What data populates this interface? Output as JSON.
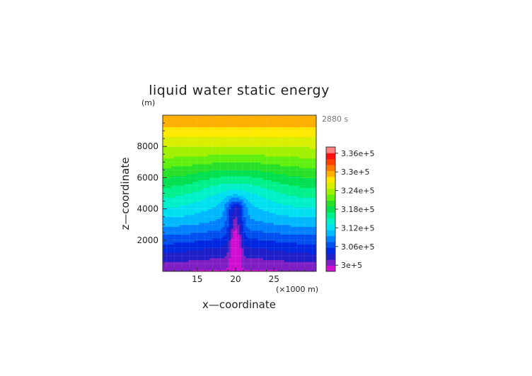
{
  "chart_data": {
    "type": "heatmap",
    "title": "liquid water static energy",
    "xlabel": "x—coordinate",
    "ylabel": "z—coordinate",
    "y_unit": "(m)",
    "x_unit": "(×1000 m)",
    "time_label": "2880 s",
    "xlim": [
      10.5,
      30.5
    ],
    "ylim": [
      0,
      10000
    ],
    "x_ticks": [
      15,
      20,
      25
    ],
    "y_ticks": [
      2000,
      4000,
      6000,
      8000
    ],
    "colorbar": {
      "range": [
        298000.0,
        338000.0
      ],
      "step": 2000,
      "tick_values": [
        300000.0,
        306000.0,
        312000.0,
        318000.0,
        324000.0,
        330000.0,
        336000.0
      ],
      "tick_labels": [
        "3e+5",
        "3.06e+5",
        "3.12e+5",
        "3.18e+5",
        "3.24e+5",
        "3.3e+5",
        "3.36e+5"
      ],
      "colors": [
        "#d10fd1",
        "#7e1fc4",
        "#1f1fc8",
        "#0028e0",
        "#0050f0",
        "#0080ff",
        "#00b8ff",
        "#00e0f0",
        "#00f0c8",
        "#00f08c",
        "#00e050",
        "#28e028",
        "#60f010",
        "#a0f000",
        "#d8f000",
        "#ffe800",
        "#ffb000",
        "#ff7800",
        "#ff4000",
        "#ff1010",
        "#ff8080"
      ]
    },
    "field_description": "Horizontally stratified energy increasing with height; a narrow low-energy plume centred at x = 20 rises to about 4000 m, with a weak bulge of the contours up to about 6000 m.",
    "plume": {
      "center_x": 20,
      "top_z": 4000,
      "bulge_top_z": 6000
    }
  }
}
